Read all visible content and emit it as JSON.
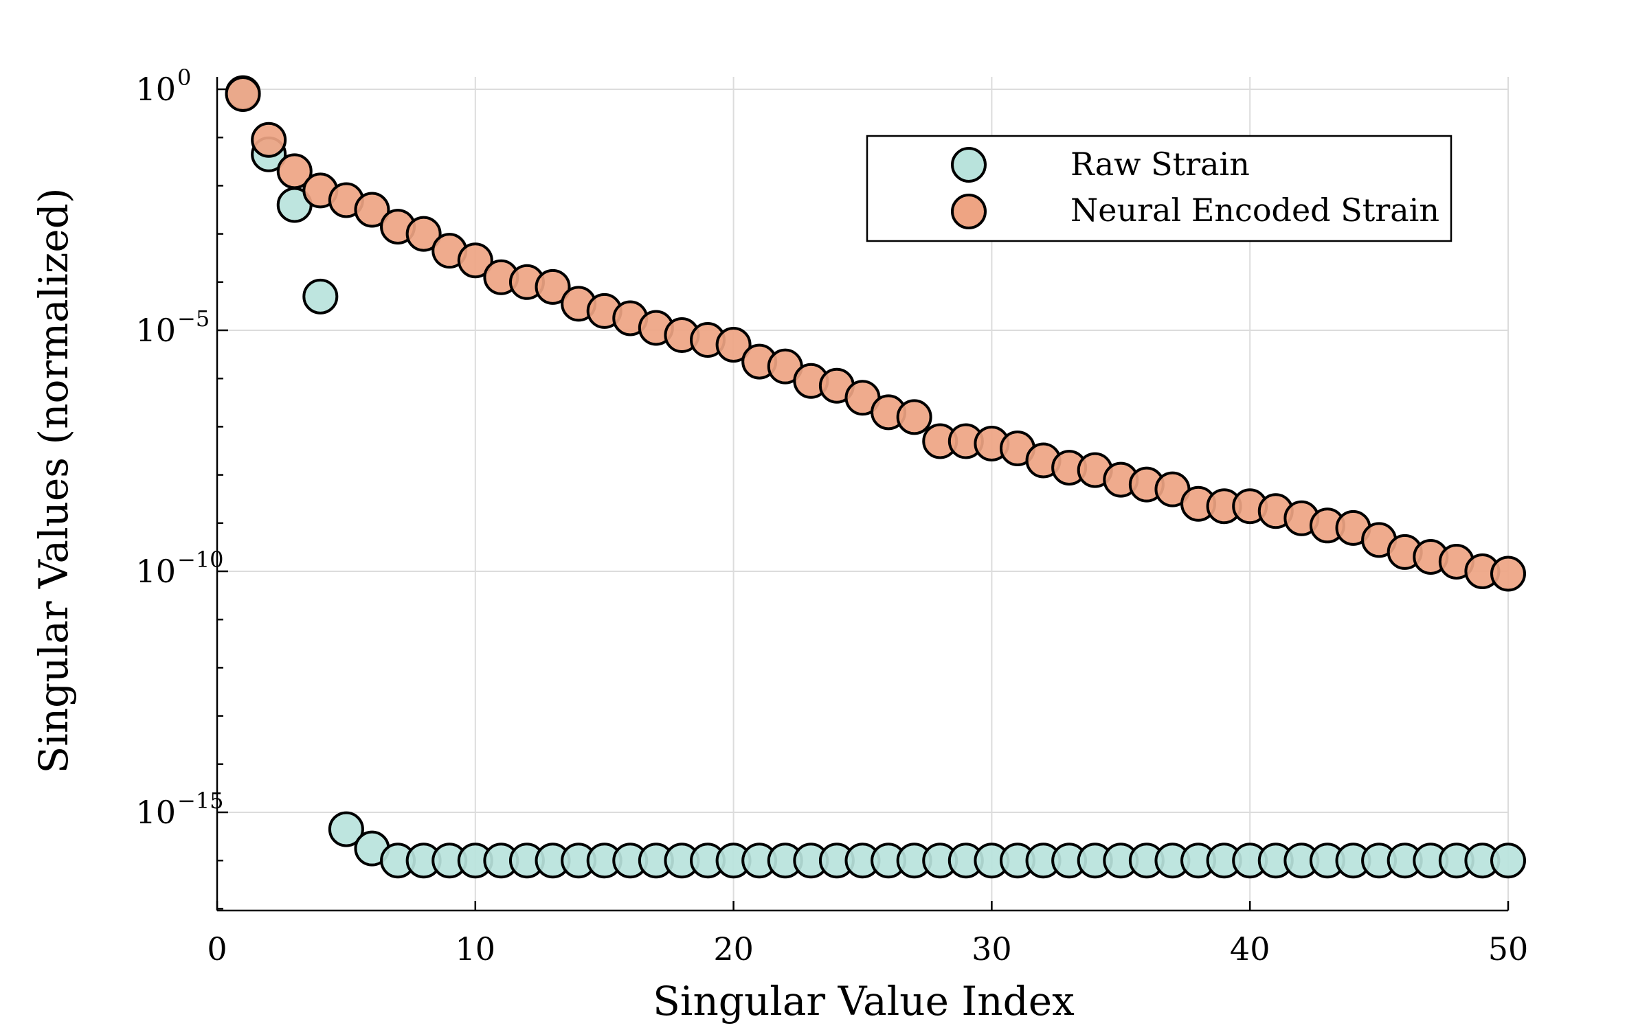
{
  "chart_data": {
    "type": "scatter",
    "xlabel": "Singular Value Index",
    "ylabel": "Singular Values (normalized)",
    "x_scale": "linear",
    "y_scale": "log",
    "xlim": [
      0,
      50
    ],
    "ylim_log10": [
      -17,
      0.25
    ],
    "x_ticks": [
      {
        "value": 0,
        "label": "0"
      },
      {
        "value": 10,
        "label": "10"
      },
      {
        "value": 20,
        "label": "20"
      },
      {
        "value": 30,
        "label": "30"
      },
      {
        "value": 40,
        "label": "40"
      },
      {
        "value": 50,
        "label": "50"
      }
    ],
    "y_ticks": [
      {
        "log10": 0,
        "base": "10",
        "exp": "0"
      },
      {
        "log10": -5,
        "base": "10",
        "exp": "−5"
      },
      {
        "log10": -10,
        "base": "10",
        "exp": "−10"
      },
      {
        "log10": -15,
        "base": "10",
        "exp": "−15"
      }
    ],
    "grid": true,
    "legend_position": "top-right",
    "x": [
      1,
      2,
      3,
      4,
      5,
      6,
      7,
      8,
      9,
      10,
      11,
      12,
      13,
      14,
      15,
      16,
      17,
      18,
      19,
      20,
      21,
      22,
      23,
      24,
      25,
      26,
      27,
      28,
      29,
      30,
      31,
      32,
      33,
      34,
      35,
      36,
      37,
      38,
      39,
      40,
      41,
      42,
      43,
      44,
      45,
      46,
      47,
      48,
      49,
      50
    ],
    "series": [
      {
        "name": "Raw Strain",
        "color": "#b9e3dc",
        "log10_values": [
          -0.08,
          -1.35,
          -2.4,
          -4.3,
          -15.35,
          -15.75,
          -16.0,
          -16.0,
          -16.0,
          -16.0,
          -16.0,
          -16.0,
          -16.0,
          -16.0,
          -16.0,
          -16.0,
          -16.0,
          -16.0,
          -16.0,
          -16.0,
          -16.0,
          -16.0,
          -16.0,
          -16.0,
          -16.0,
          -16.0,
          -16.0,
          -16.0,
          -16.0,
          -16.0,
          -16.0,
          -16.0,
          -16.0,
          -16.0,
          -16.0,
          -16.0,
          -16.0,
          -16.0,
          -16.0,
          -16.0,
          -16.0,
          -16.0,
          -16.0,
          -16.0,
          -16.0,
          -16.0,
          -16.0,
          -16.0,
          -16.0,
          -16.0
        ]
      },
      {
        "name": "Neural Encoded Strain",
        "color": "#eea483",
        "log10_values": [
          -0.1,
          -1.05,
          -1.7,
          -2.1,
          -2.3,
          -2.5,
          -2.85,
          -3.0,
          -3.35,
          -3.55,
          -3.9,
          -4.0,
          -4.1,
          -4.45,
          -4.6,
          -4.75,
          -4.95,
          -5.1,
          -5.2,
          -5.3,
          -5.65,
          -5.75,
          -6.05,
          -6.15,
          -6.4,
          -6.7,
          -6.8,
          -7.3,
          -7.3,
          -7.35,
          -7.45,
          -7.7,
          -7.85,
          -7.9,
          -8.1,
          -8.2,
          -8.3,
          -8.6,
          -8.65,
          -8.65,
          -8.75,
          -8.9,
          -9.05,
          -9.1,
          -9.35,
          -9.6,
          -9.7,
          -9.8,
          -10.0,
          -10.05
        ]
      }
    ]
  }
}
